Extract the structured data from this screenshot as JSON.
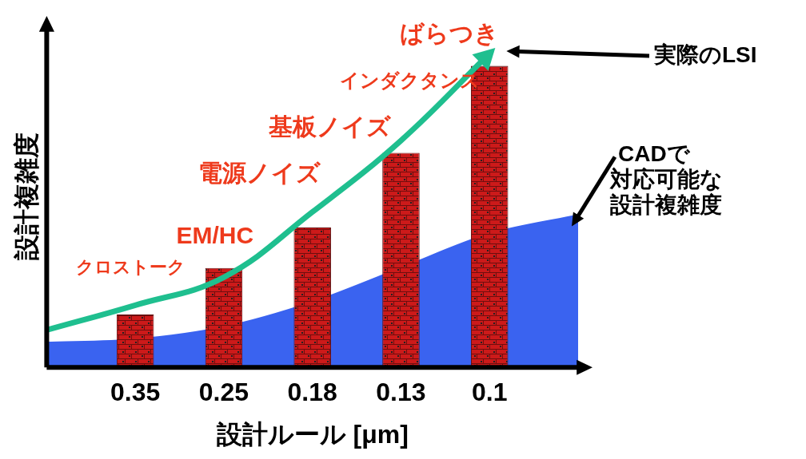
{
  "chart_data": {
    "type": "bar",
    "x_label": "設計ルール [μm]",
    "y_label": "設計複雑度",
    "categories": [
      null,
      "0.35",
      "0.25",
      "0.18",
      "0.13",
      "0.1",
      null
    ],
    "ylim": [
      0,
      110
    ],
    "tick_labels": "x",
    "grid": false,
    "series": [
      {
        "type": "bar",
        "color": "#cc1a1a",
        "values": [
          null,
          17,
          32,
          45,
          69,
          97,
          null
        ]
      },
      {
        "name": "実際のLSI",
        "type": "line",
        "color": "#1fbf8f",
        "marker": "none",
        "values": [
          12,
          20,
          29,
          50,
          73,
          101,
          null
        ]
      },
      {
        "name": "CADで\n対応可能な\n設計複雑度",
        "type": "area",
        "color": "#3a63f0",
        "values": [
          8,
          9,
          13,
          21,
          32,
          43,
          49
        ]
      }
    ],
    "annotations": [
      "クロストーク",
      "EM/HC",
      "電源ノイズ",
      "基板ノイズ",
      "インダクタンス",
      "ばらつき"
    ]
  }
}
